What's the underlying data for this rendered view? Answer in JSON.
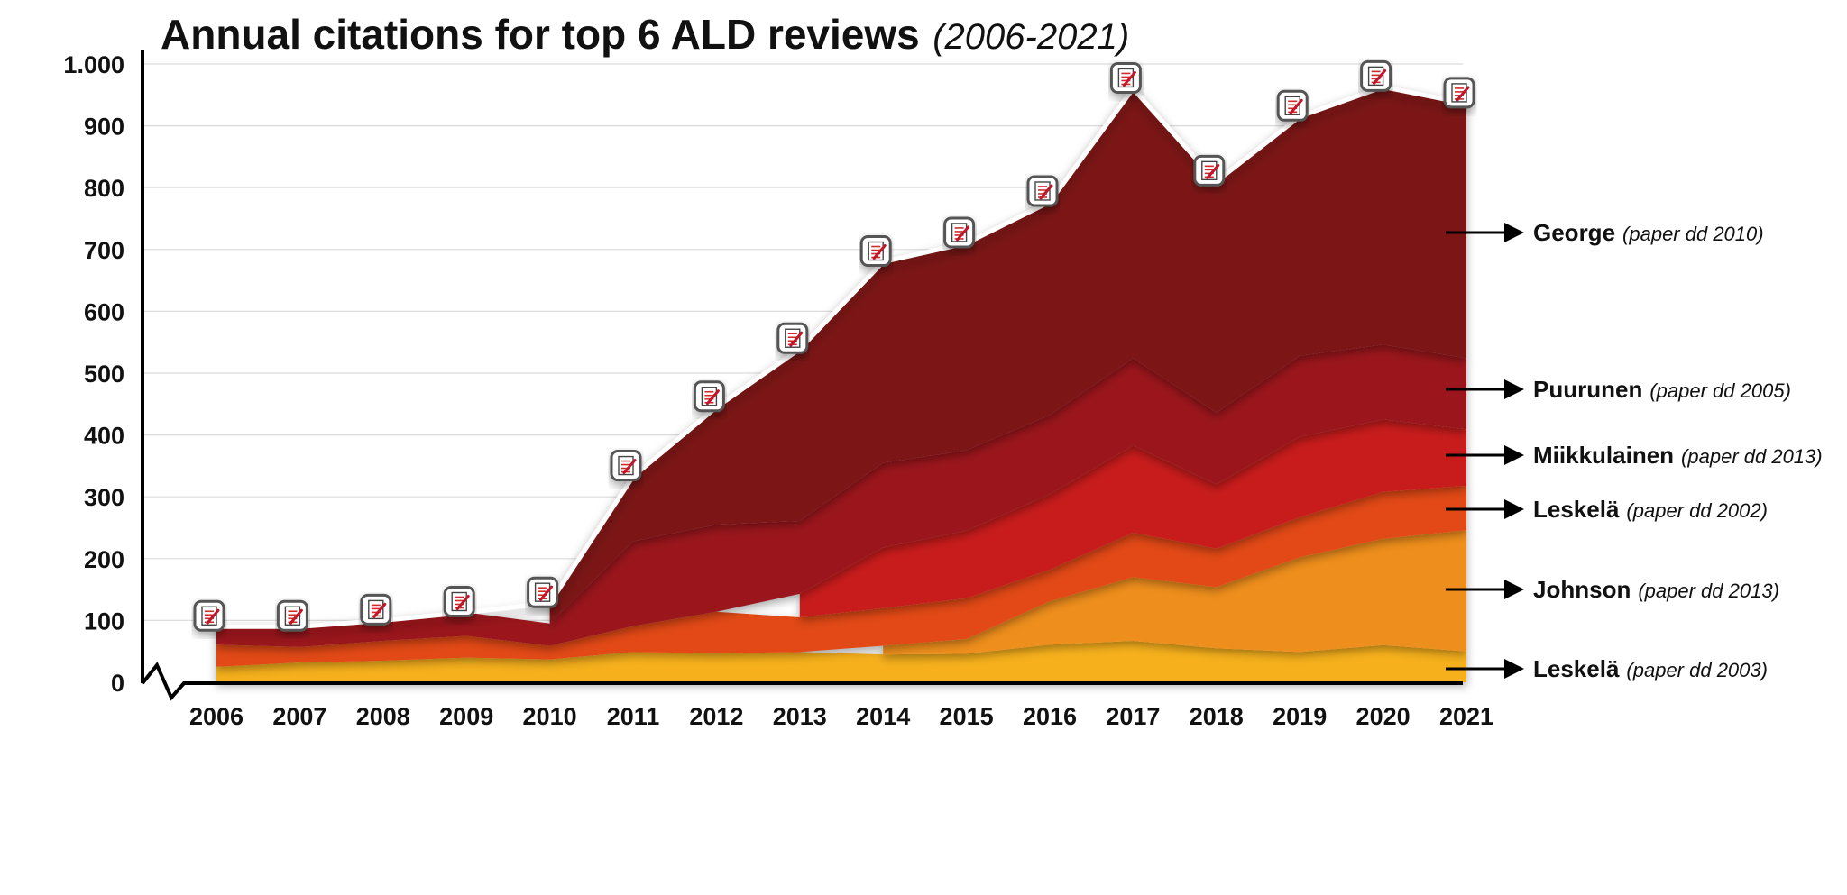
{
  "chart_data": {
    "type": "area",
    "stacked": true,
    "title": "Annual citations for top 6 ALD reviews",
    "subtitle": "(2006-2021)",
    "xlabel": "",
    "ylabel": "",
    "ylim": [
      0,
      1000
    ],
    "y_ticks": [
      0,
      100,
      200,
      300,
      400,
      500,
      600,
      700,
      800,
      900,
      1000
    ],
    "y_tick_labels": [
      "0",
      "100",
      "200",
      "300",
      "400",
      "500",
      "600",
      "700",
      "800",
      "900",
      "1.000"
    ],
    "x": [
      "2006",
      "2007",
      "2008",
      "2009",
      "2010",
      "2011",
      "2012",
      "2013",
      "2014",
      "2015",
      "2016",
      "2017",
      "2018",
      "2019",
      "2020",
      "2021"
    ],
    "grid": true,
    "legend_placement": "right",
    "series": [
      {
        "name": "Leskelä",
        "note": "(paper dd 2003)",
        "color": "#f6b01a",
        "values": [
          25,
          32,
          35,
          40,
          37,
          49,
          47,
          49,
          45,
          46,
          61,
          67,
          55,
          49,
          60,
          50
        ]
      },
      {
        "name": "Johnson",
        "note": "(paper dd 2013)",
        "color": "#ee8e1c",
        "values": [
          null,
          null,
          null,
          null,
          null,
          null,
          null,
          null,
          14,
          24,
          70,
          103,
          99,
          153,
          172,
          196
        ]
      },
      {
        "name": "Leskelä",
        "note": "(paper dd 2002)",
        "color": "#e24a14",
        "values": [
          36,
          25,
          32,
          35,
          22,
          42,
          67,
          56,
          61,
          66,
          51,
          72,
          62,
          65,
          76,
          72
        ]
      },
      {
        "name": "Miikkulainen",
        "note": "(paper dd 2013)",
        "color": "#c81a1a",
        "values": [
          null,
          null,
          null,
          null,
          null,
          null,
          null,
          38,
          98,
          109,
          122,
          141,
          104,
          130,
          117,
          91
        ]
      },
      {
        "name": "Puurunen",
        "note": "(paper dd 2005)",
        "color": "#9a141a",
        "values": [
          29,
          33,
          33,
          38,
          36,
          137,
          141,
          118,
          137,
          130,
          128,
          141,
          116,
          131,
          121,
          115
        ]
      },
      {
        "name": "George",
        "note": "(paper dd 2010)",
        "color": "#7b1217",
        "values": [
          null,
          null,
          null,
          null,
          33,
          105,
          190,
          278,
          325,
          335,
          345,
          436,
          374,
          387,
          417,
          412
        ]
      }
    ],
    "totals": [
      90,
      90,
      100,
      113,
      128,
      333,
      445,
      539,
      680,
      710,
      777,
      960,
      810,
      915,
      963,
      936
    ]
  }
}
